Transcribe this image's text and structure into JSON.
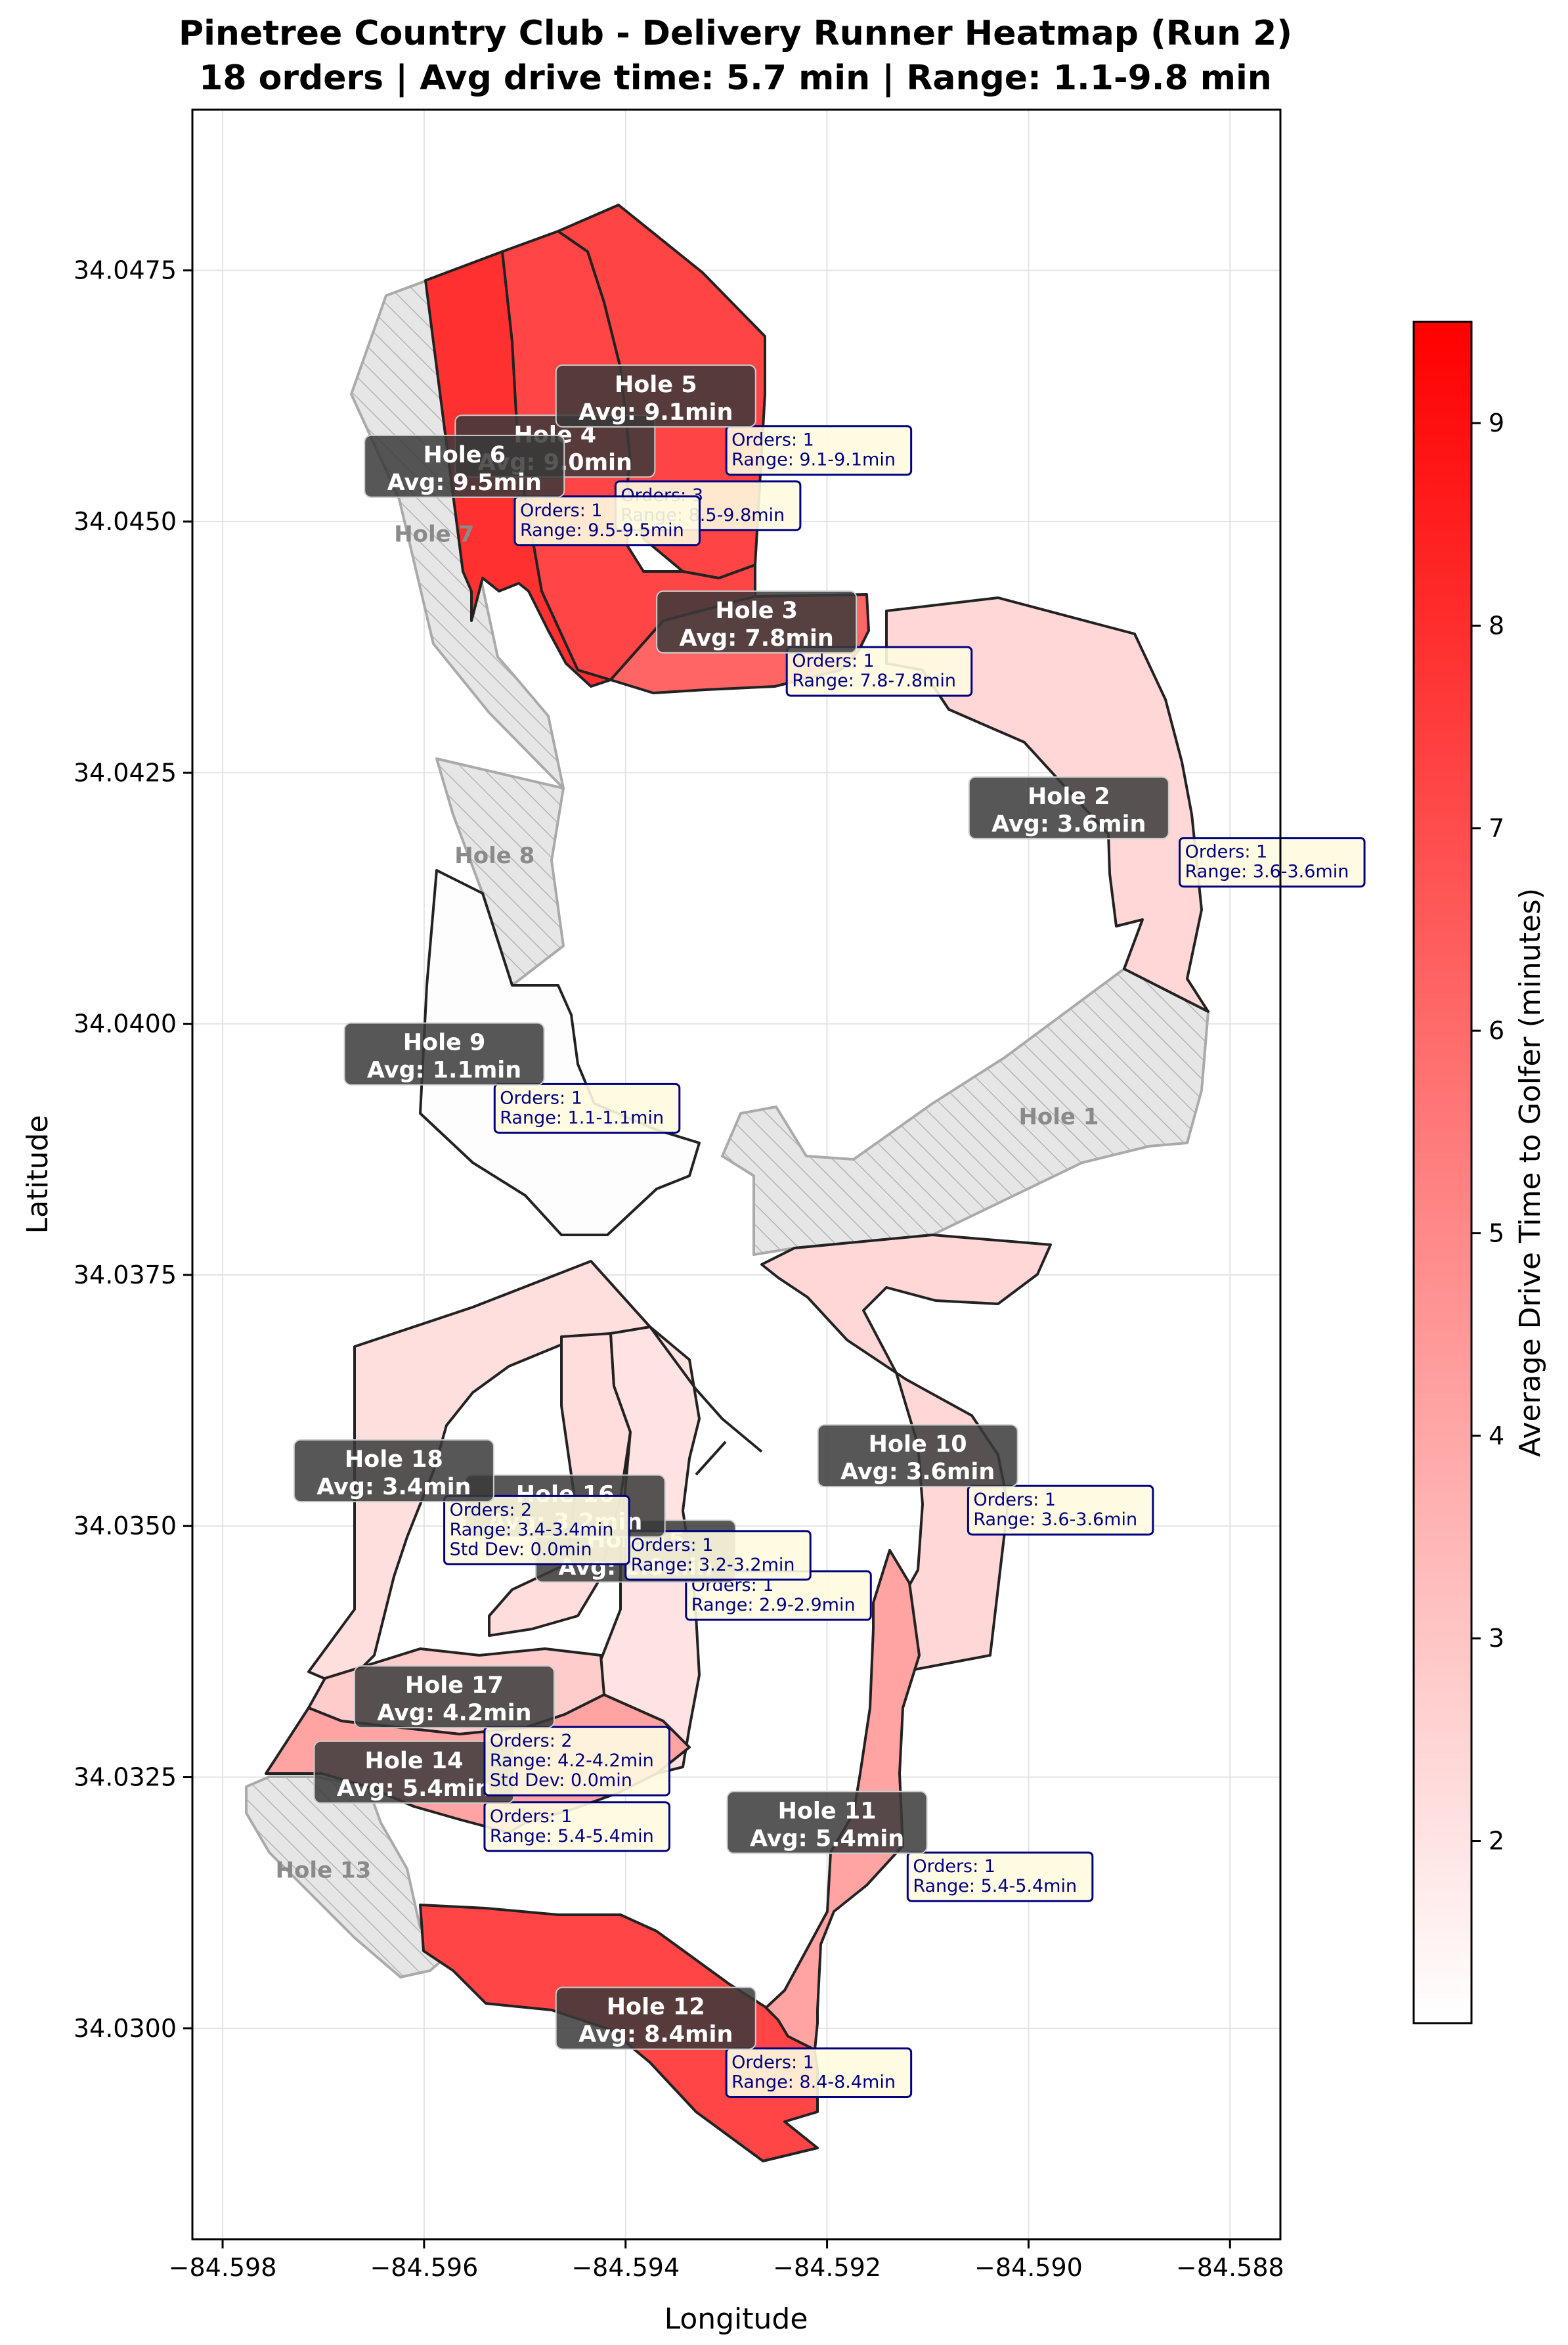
{
  "title_line1": "Pinetree Country Club - Delivery Runner Heatmap (Run 2)",
  "title_line2": "18 orders | Avg drive time: 5.7 min | Range: 1.1-9.8 min",
  "axes": {
    "xlabel": "Longitude",
    "ylabel": "Latitude",
    "xlim": [
      -84.5983,
      -84.5875
    ],
    "ylim": [
      34.0279,
      34.0491
    ],
    "xticks": [
      -84.598,
      -84.596,
      -84.594,
      -84.592,
      -84.59,
      -84.588
    ],
    "xtick_labels": [
      "−84.598",
      "−84.596",
      "−84.594",
      "−84.592",
      "−84.590",
      "−84.588"
    ],
    "yticks": [
      34.03,
      34.0325,
      34.035,
      34.0375,
      34.04,
      34.0425,
      34.045,
      34.0475
    ],
    "ytick_labels": [
      "34.0300",
      "34.0325",
      "34.0350",
      "34.0375",
      "34.0400",
      "34.0425",
      "34.0450",
      "34.0475"
    ],
    "grid": true
  },
  "colorbar": {
    "label": "Average Drive Time to Golfer (minutes)",
    "min": 1.1,
    "max": 9.5,
    "ticks": [
      2,
      3,
      4,
      5,
      6,
      7,
      8,
      9
    ],
    "tick_labels": [
      "2",
      "3",
      "4",
      "5",
      "6",
      "7",
      "8",
      "9"
    ],
    "color_low": "#ffffff",
    "color_high": "#ff0000"
  },
  "unserved_holes": [
    {
      "hole": "Hole 1",
      "label": "Hole 1"
    },
    {
      "hole": "Hole 7",
      "label": "Hole 7"
    },
    {
      "hole": "Hole 8",
      "label": "Hole 8"
    },
    {
      "hole": "Hole 13",
      "label": "Hole 13"
    }
  ],
  "holes": [
    {
      "hole": "Hole 2",
      "title": "Hole 2",
      "avg_label": "Avg: 3.6min",
      "avg": 3.6,
      "orders_label": "Orders: 1",
      "range_label": "Range: 3.6-3.6min"
    },
    {
      "hole": "Hole 3",
      "title": "Hole 3",
      "avg_label": "Avg: 7.8min",
      "avg": 7.8,
      "orders_label": "Orders: 1",
      "range_label": "Range: 7.8-7.8min"
    },
    {
      "hole": "Hole 4",
      "title": "Hole 4",
      "avg_label": "Avg: 9.0min",
      "avg": 9.0,
      "orders_label": "Orders: 3",
      "range_label": "Range: 8.5-9.8min"
    },
    {
      "hole": "Hole 5",
      "title": "Hole 5",
      "avg_label": "Avg: 9.1min",
      "avg": 9.1,
      "orders_label": "Orders: 1",
      "range_label": "Range: 9.1-9.1min"
    },
    {
      "hole": "Hole 6",
      "title": "Hole 6",
      "avg_label": "Avg: 9.5min",
      "avg": 9.5,
      "orders_label": "Orders: 1",
      "range_label": "Range: 9.5-9.5min"
    },
    {
      "hole": "Hole 9",
      "title": "Hole 9",
      "avg_label": "Avg: 1.1min",
      "avg": 1.1,
      "orders_label": "Orders: 1",
      "range_label": "Range: 1.1-1.1min"
    },
    {
      "hole": "Hole 10",
      "title": "Hole 10",
      "avg_label": "Avg: 3.6min",
      "avg": 3.6,
      "orders_label": "Orders: 1",
      "range_label": "Range: 3.6-3.6min"
    },
    {
      "hole": "Hole 11",
      "title": "Hole 11",
      "avg_label": "Avg: 5.4min",
      "avg": 5.4,
      "orders_label": "Orders: 1",
      "range_label": "Range: 5.4-5.4min"
    },
    {
      "hole": "Hole 12",
      "title": "Hole 12",
      "avg_label": "Avg: 8.4min",
      "avg": 8.4,
      "orders_label": "Orders: 1",
      "range_label": "Range: 8.4-8.4min"
    },
    {
      "hole": "Hole 14",
      "title": "Hole 14",
      "avg_label": "Avg: 5.4min",
      "avg": 5.4,
      "orders_label": "Orders: 1",
      "range_label": "Range: 5.4-5.4min"
    },
    {
      "hole": "Hole 15",
      "title": "Hole 15",
      "avg_label": "Avg: 2.9min",
      "avg": 2.9,
      "orders_label": "Orders: 1",
      "range_label": "Range: 2.9-2.9min"
    },
    {
      "hole": "Hole 16",
      "title": "Hole 16",
      "avg_label": "Avg: 3.2min",
      "avg": 3.2,
      "orders_label": "Orders: 1",
      "range_label": "Range: 3.2-3.2min"
    },
    {
      "hole": "Hole 17",
      "title": "Hole 17",
      "avg_label": "Avg: 4.2min",
      "avg": 4.2,
      "orders_label": "Orders: 2",
      "range_label": "Range: 4.2-4.2min",
      "std_label": "Std Dev: 0.0min"
    },
    {
      "hole": "Hole 18",
      "title": "Hole 18",
      "avg_label": "Avg: 3.4min",
      "avg": 3.4,
      "orders_label": "Orders: 2",
      "range_label": "Range: 3.4-3.4min",
      "std_label": "Std Dev: 0.0min"
    }
  ]
}
